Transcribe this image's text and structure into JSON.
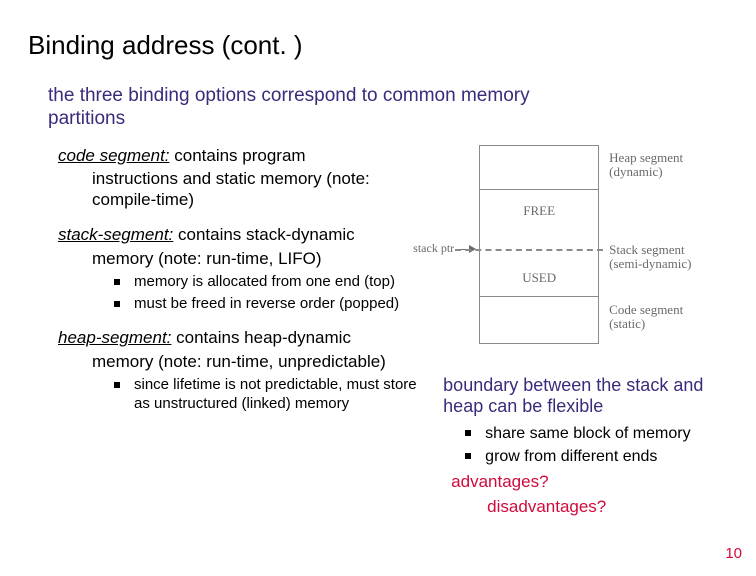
{
  "title": "Binding address (cont. )",
  "intro": "the three binding options correspond to common memory partitions",
  "segments": {
    "code": {
      "term": "code segment:",
      "desc_line1": " contains program",
      "desc_rest": "instructions and static memory (note: compile-time)"
    },
    "stack": {
      "term": "stack-segment:",
      "desc_line1": " contains stack-dynamic",
      "desc_rest": "memory (note: run-time, LIFO)",
      "bullets": [
        "memory is allocated from one end (top)",
        "must be freed in reverse order (popped)"
      ]
    },
    "heap": {
      "term": "heap-segment:",
      "desc_line1": " contains heap-dynamic",
      "desc_rest": "memory (note: run-time, unpredictable)",
      "bullets": [
        "since lifetime is not predictable, must store as unstructured (linked) memory"
      ]
    }
  },
  "diagram": {
    "stack_ptr": "stack ptr",
    "boxes": {
      "heap": "",
      "free": "FREE",
      "used": "USED",
      "code": ""
    },
    "rlabels": {
      "heap": "Heap segment (dynamic)",
      "stack": "Stack segment (semi-dynamic)",
      "code": "Code segment (static)"
    },
    "colors": {
      "border": "#8a8a8a",
      "text": "#6a6a6a"
    }
  },
  "right": {
    "boundary": "boundary between the stack and heap can be flexible",
    "bullets": [
      "share same block of memory",
      "grow from different ends"
    ],
    "adv1": "advantages?",
    "adv2": "disadvantages?"
  },
  "page_number": "10",
  "colors": {
    "title": "#000000",
    "intro": "#3c2a7a",
    "accent": "#d10a3b",
    "background": "#ffffff"
  }
}
